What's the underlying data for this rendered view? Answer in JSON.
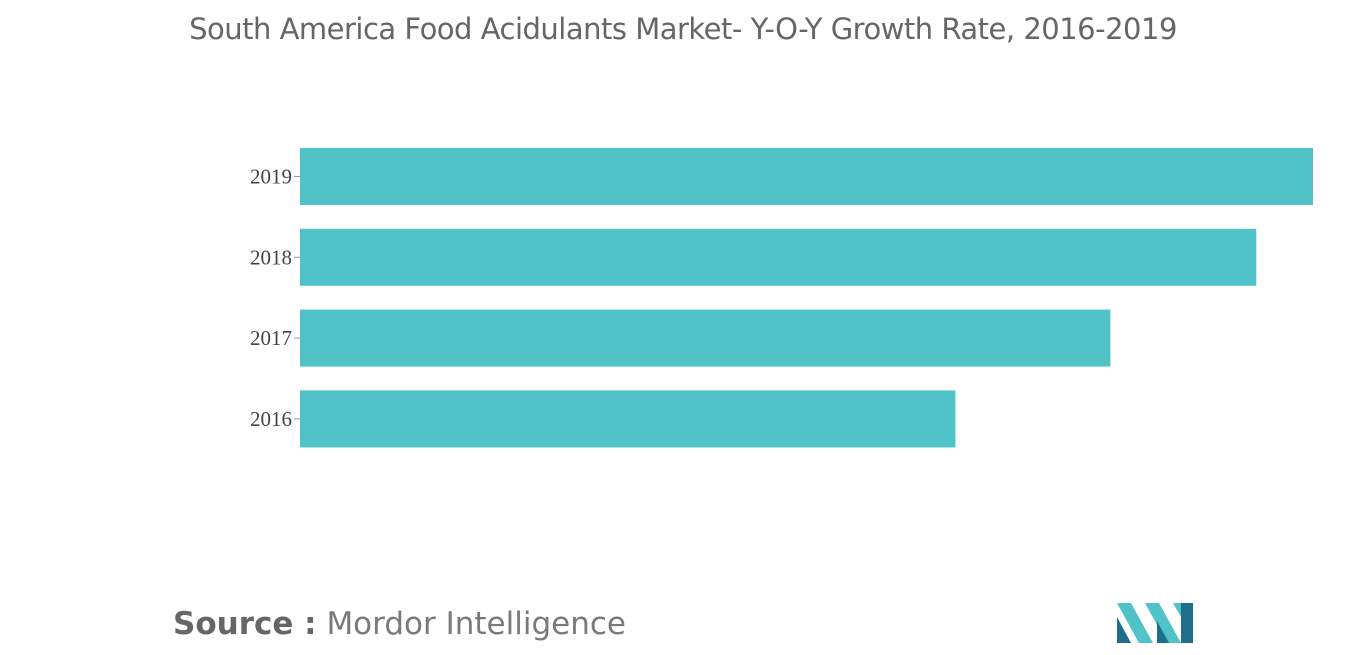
{
  "title": "South America Food Acidulants Market- Y-O-Y Growth Rate, 2016-2019",
  "source": {
    "label": "Source :",
    "value": "Mordor Intelligence"
  },
  "logo": {
    "icon": "mordor-intelligence-logo"
  },
  "colors": {
    "bar": "#4fc3c8",
    "text": "#666666",
    "logo_dark": "#1f6e8c",
    "logo_light": "#4fc3c8"
  },
  "chart_data": {
    "type": "bar",
    "orientation": "horizontal",
    "title": "South America Food Acidulants Market- Y-O-Y Growth Rate, 2016-2019",
    "categories": [
      "2019",
      "2018",
      "2017",
      "2016"
    ],
    "values": [
      100,
      94.4,
      80,
      64.7
    ],
    "value_axis_shown": false,
    "grid": false,
    "legend": "none"
  }
}
